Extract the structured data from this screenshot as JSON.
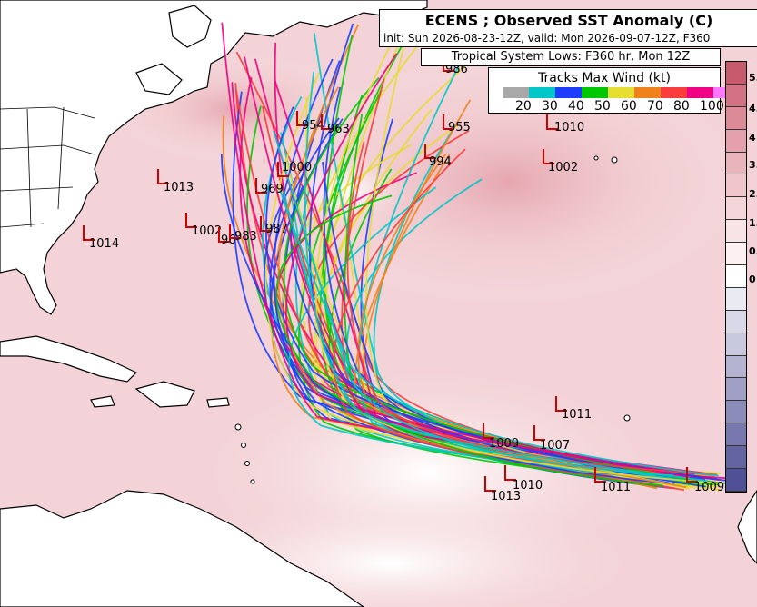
{
  "header": {
    "title": "ECENS ; Observed SST Anomaly (C)",
    "subtitle": "init: Sun 2026-08-23-12Z, valid: Mon 2026-09-07-12Z, F360"
  },
  "lows_caption": "Tropical System Lows: F360 hr, Mon 12Z",
  "legend": {
    "title": "Tracks Max Wind (kt)",
    "colors": [
      "#a8a8a8",
      "#00c8c8",
      "#1e3cff",
      "#00c800",
      "#e6dc32",
      "#f0821e",
      "#fa3c3c",
      "#f00082",
      "#ff78ff"
    ],
    "ticks": [
      "20",
      "30",
      "40",
      "50",
      "60",
      "70",
      "80",
      "100"
    ]
  },
  "colorbar": {
    "colors": [
      "#c85a6e",
      "#d27282",
      "#dc8a98",
      "#e4a0ac",
      "#eab4bc",
      "#f0c6cc",
      "#f4d6da",
      "#f8e4e6",
      "#fcf0f2",
      "#ffffff",
      "#eaeaf2",
      "#d8d8e8",
      "#c8c8de",
      "#b4b4d2",
      "#a0a0c6",
      "#8c8cba",
      "#7878ae",
      "#6464a2",
      "#505096"
    ],
    "labels": [
      "5.",
      "4.",
      "4",
      "3.",
      "2.",
      "1.",
      "0.",
      "0"
    ]
  },
  "lows": [
    {
      "label": "1014"
    },
    {
      "label": "1013"
    },
    {
      "label": "1002"
    },
    {
      "label": "96"
    },
    {
      "label": "983"
    },
    {
      "label": "987"
    },
    {
      "label": "969"
    },
    {
      "label": "1000"
    },
    {
      "label": "954"
    },
    {
      "label": "963"
    },
    {
      "label": "986"
    },
    {
      "label": "955"
    },
    {
      "label": "994"
    },
    {
      "label": "1010"
    },
    {
      "label": "1002"
    },
    {
      "label": "1011"
    },
    {
      "label": "1009"
    },
    {
      "label": "1007"
    },
    {
      "label": "1010"
    },
    {
      "label": "1013"
    },
    {
      "label": "1011"
    },
    {
      "label": "1009"
    }
  ]
}
